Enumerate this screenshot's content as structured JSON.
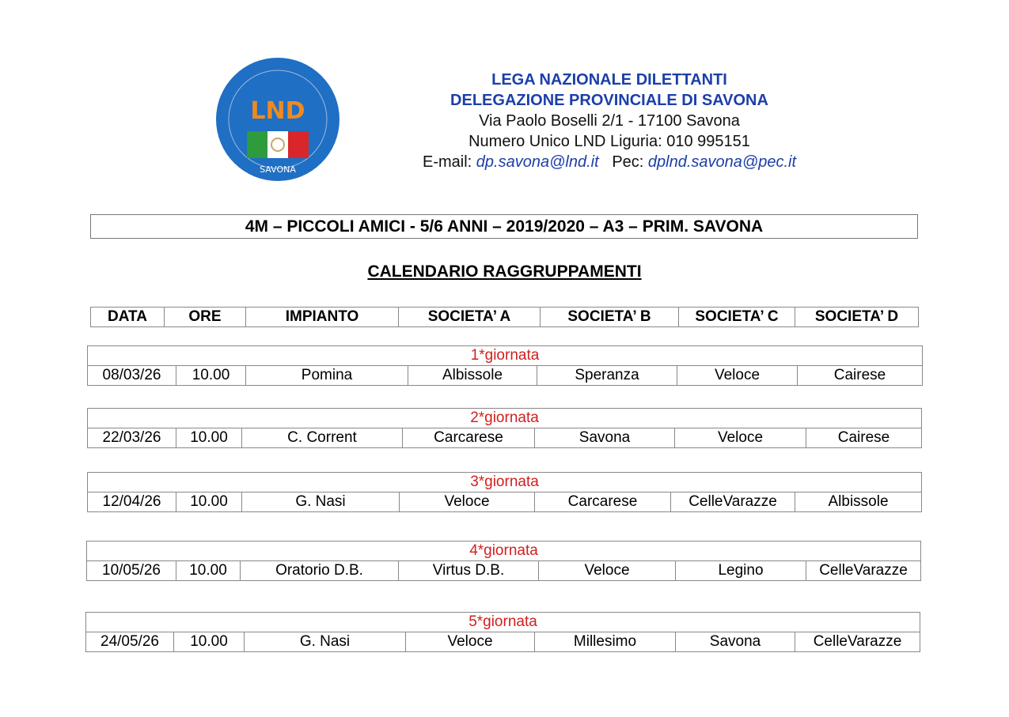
{
  "header": {
    "logo_text": "LND",
    "logo_subtext": "SAVONA",
    "org": "LEGA NAZIONALE DILETTANTI",
    "delegation": "DELEGAZIONE PROVINCIALE DI SAVONA",
    "address": "Via Paolo Boselli 2/1 - 17100 Savona",
    "phone": "Numero Unico LND Liguria:  010 995151",
    "email_label": "E-mail:",
    "email": "dp.savona@lnd.it",
    "pec_label": "Pec:",
    "pec": "dplnd.savona@pec.it"
  },
  "title": "4M – PICCOLI AMICI  - 5/6 ANNI – 2019/2020 – A3 – PRIM. SAVONA",
  "subtitle": "CALENDARIO RAGGRUPPAMENTI",
  "columns": [
    "DATA",
    "ORE",
    "IMPIANTO",
    "SOCIETA’   A",
    "SOCIETA’   B",
    "SOCIETA’  C",
    "SOCIETA’   D"
  ],
  "rounds": [
    {
      "label": "1*giornata",
      "cells": [
        "08/03/26",
        "10.00",
        "Pomina",
        "Albissole",
        "Speranza",
        "Veloce",
        "Cairese"
      ]
    },
    {
      "label": "2*giornata",
      "cells": [
        "22/03/26",
        "10.00",
        "C. Corrent",
        "Carcarese",
        "Savona",
        "Veloce",
        "Cairese"
      ]
    },
    {
      "label": "3*giornata",
      "cells": [
        "12/04/26",
        "10.00",
        "G. Nasi",
        "Veloce",
        "Carcarese",
        "CelleVarazze",
        "Albissole"
      ]
    },
    {
      "label": "4*giornata",
      "cells": [
        "10/05/26",
        "10.00",
        "Oratorio D.B.",
        "Virtus D.B.",
        "Veloce",
        "Legino",
        "CelleVarazze"
      ]
    },
    {
      "label": "5*giornata",
      "cells": [
        "24/05/26",
        "10.00",
        "G. Nasi",
        "Veloce",
        "Millesimo",
        "Savona",
        "CelleVarazze"
      ]
    }
  ]
}
